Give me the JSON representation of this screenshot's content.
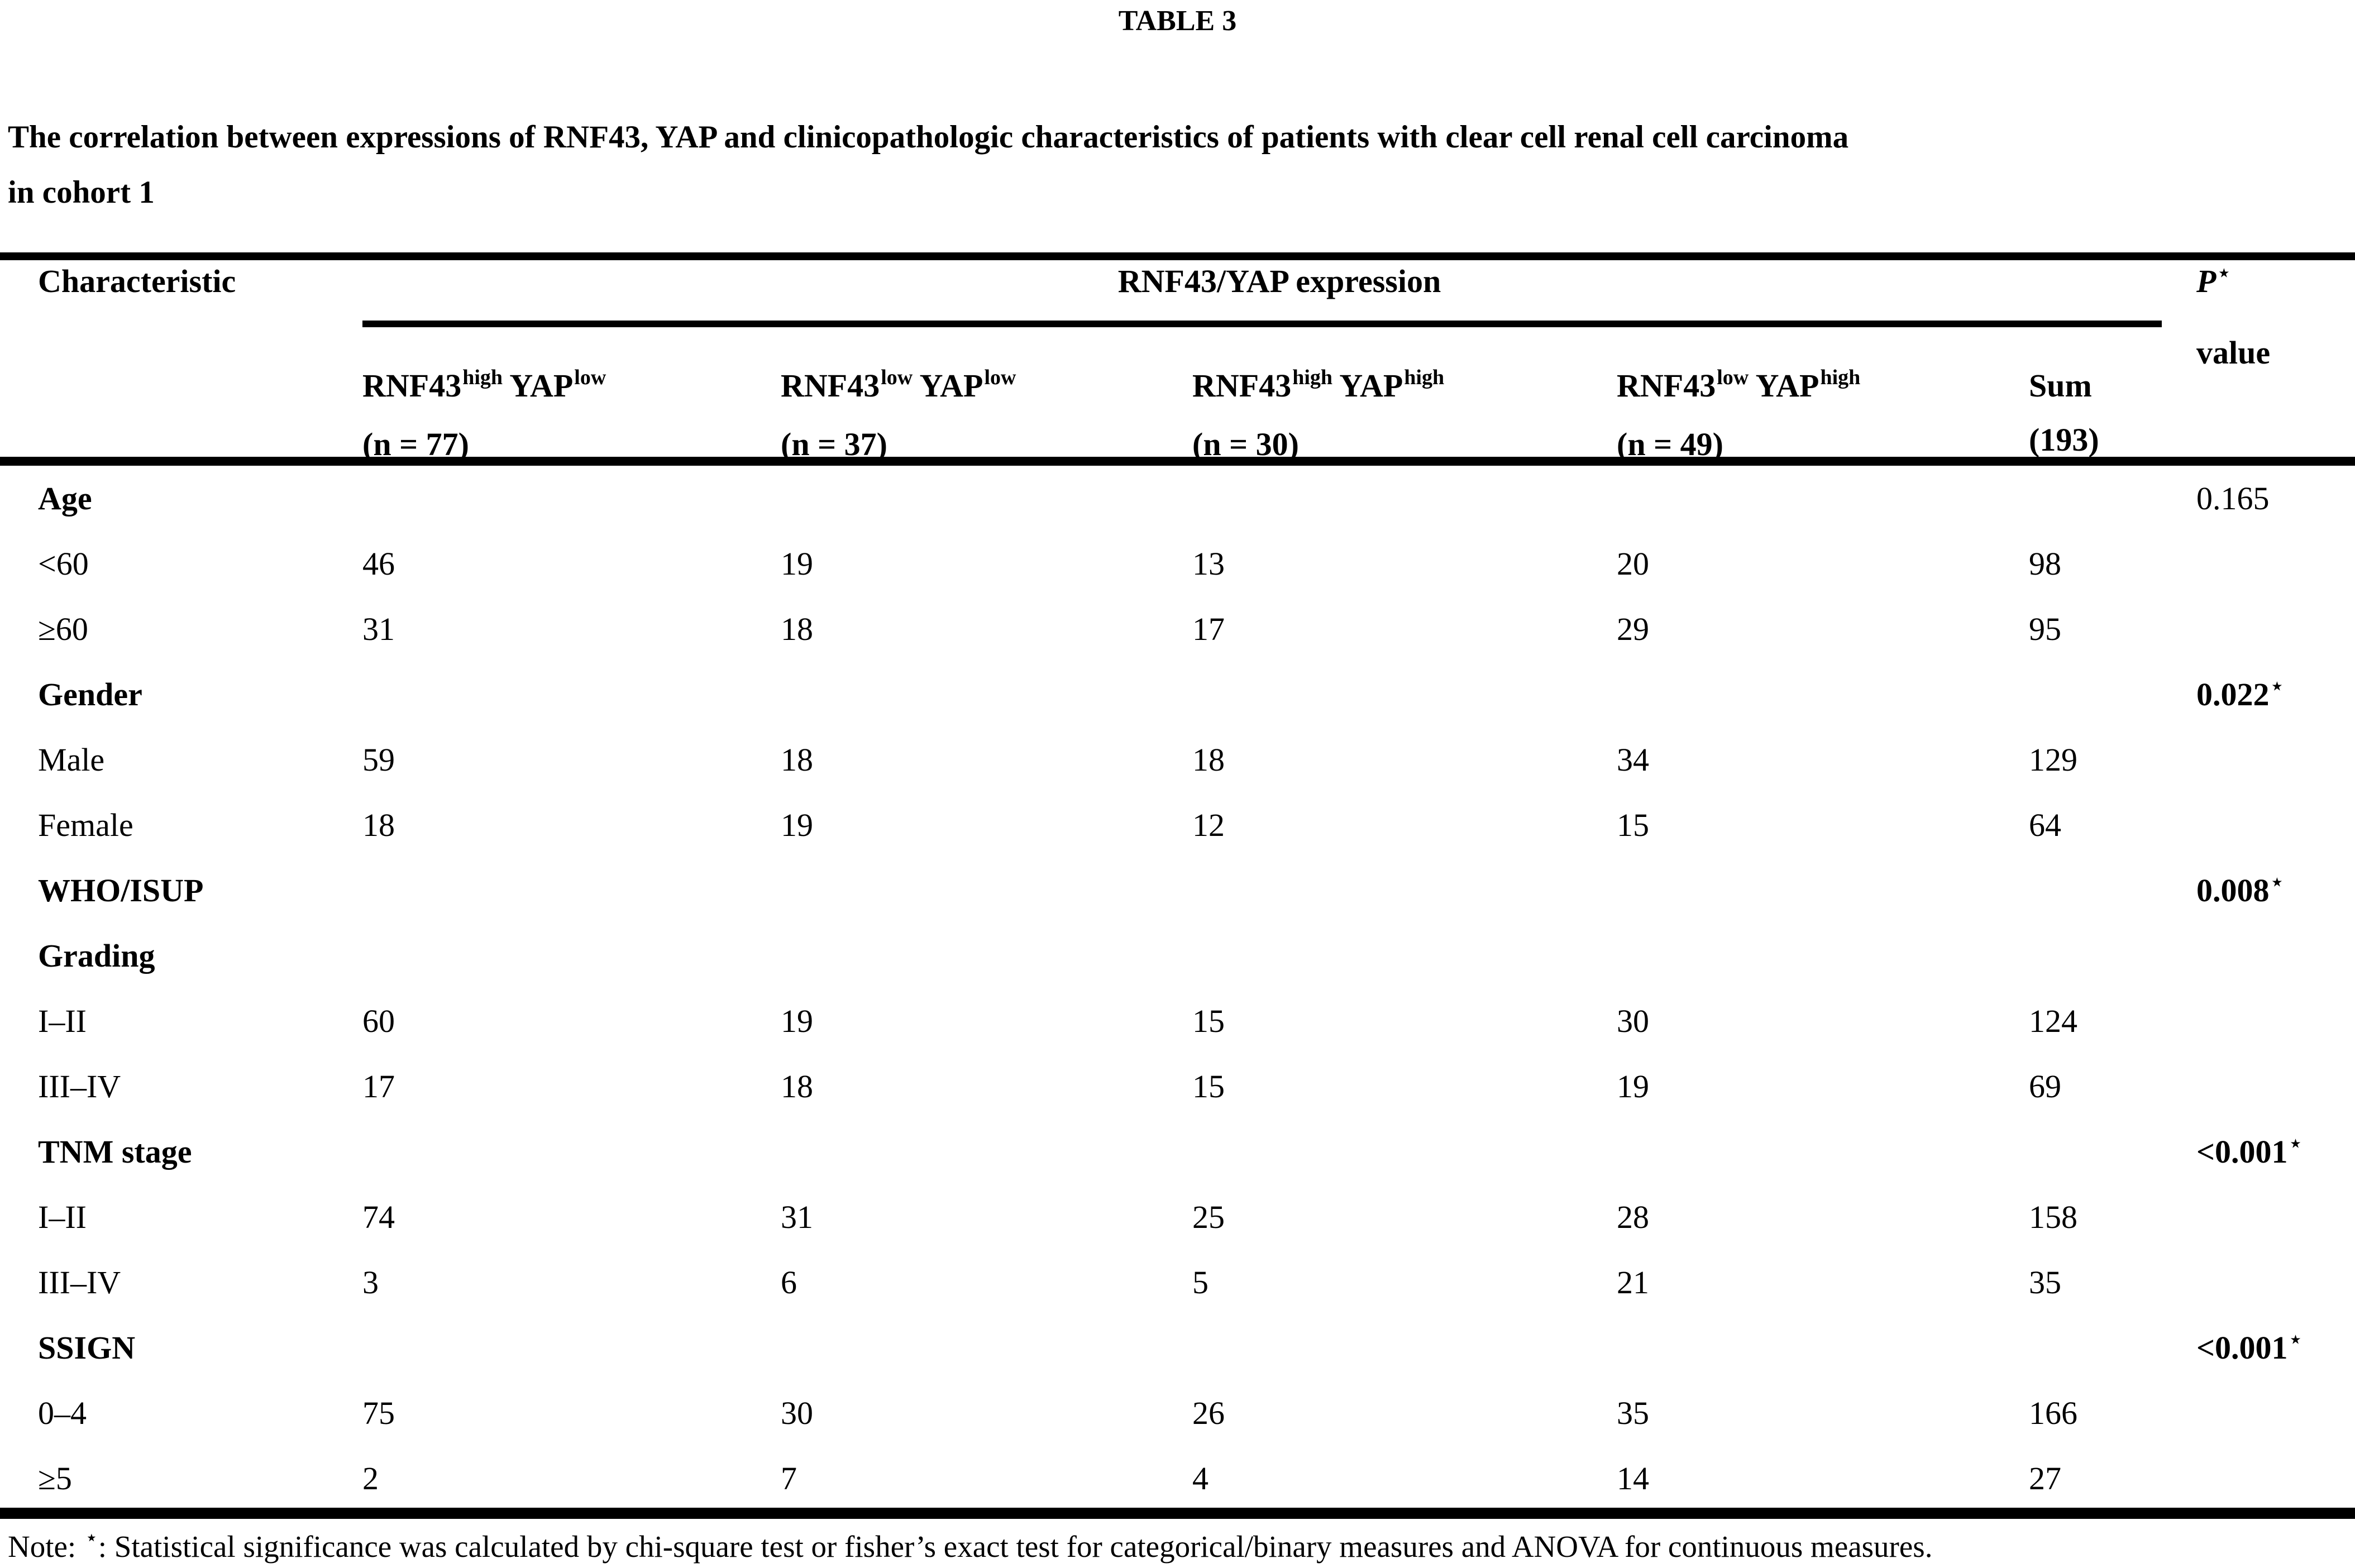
{
  "page": {
    "title": "TABLE 3",
    "caption_line1": "The correlation between expressions of RNF43, YAP and clinicopathologic characteristics of patients with clear cell renal cell carcinoma",
    "caption_line2": "in cohort 1"
  },
  "table": {
    "header": {
      "characteristic": "Characteristic",
      "group": "RNF43/YAP expression",
      "p_label": "P",
      "p_star": "⋆",
      "p_value_word": "value",
      "columns": [
        {
          "gene_a": "RNF43",
          "sup_a": "high",
          "gene_b": "YAP",
          "sup_b": "low",
          "n": "(n = 77)"
        },
        {
          "gene_a": "RNF43",
          "sup_a": "low",
          "gene_b": "YAP",
          "sup_b": "low",
          "n": "(n = 37)"
        },
        {
          "gene_a": "RNF43",
          "sup_a": "high",
          "gene_b": "YAP",
          "sup_b": "high",
          "n": "(n = 30)"
        },
        {
          "gene_a": "RNF43",
          "sup_a": "low",
          "gene_b": "YAP",
          "sup_b": "high",
          "n": "(n = 49)"
        },
        {
          "label": "Sum",
          "n": "(193)"
        }
      ]
    },
    "rows": [
      {
        "label": "Age",
        "p": "0.165",
        "p_star": ""
      },
      {
        "label": "<60",
        "values": [
          "46",
          "19",
          "13",
          "20",
          "98"
        ]
      },
      {
        "label": "≥60",
        "values": [
          "31",
          "18",
          "17",
          "29",
          "95"
        ]
      },
      {
        "label": "Gender",
        "p": "0.022",
        "p_star": "⋆"
      },
      {
        "label": "Male",
        "values": [
          "59",
          "18",
          "18",
          "34",
          "129"
        ]
      },
      {
        "label": "Female",
        "values": [
          "18",
          "19",
          "12",
          "15",
          "64"
        ]
      },
      {
        "label": "WHO/ISUP",
        "label2": "Grading",
        "p": "0.008",
        "p_star": "⋆"
      },
      {
        "label": "I–II",
        "values": [
          "60",
          "19",
          "15",
          "30",
          "124"
        ]
      },
      {
        "label": "III–IV",
        "values": [
          "17",
          "18",
          "15",
          "19",
          "69"
        ]
      },
      {
        "label": "TNM stage",
        "p": "<0.001",
        "p_star": "⋆"
      },
      {
        "label": "I–II",
        "values": [
          "74",
          "31",
          "25",
          "28",
          "158"
        ]
      },
      {
        "label": "III–IV",
        "values": [
          "3",
          "6",
          "5",
          "21",
          "35"
        ]
      },
      {
        "label": "SSIGN",
        "p": "<0.001",
        "p_star": "⋆"
      },
      {
        "label": "0–4",
        "values": [
          "75",
          "30",
          "26",
          "35",
          "166"
        ]
      },
      {
        "label": "≥5",
        "values": [
          "2",
          "7",
          "4",
          "14",
          "27"
        ]
      }
    ],
    "note": {
      "prefix": "Note: ",
      "star": "⋆",
      "text": ": Statistical significance was calculated by chi-square test or fisher’s exact test for categorical/binary measures and ANOVA for continuous measures."
    }
  },
  "colors": {
    "text": "#000000",
    "background": "#ffffff"
  }
}
